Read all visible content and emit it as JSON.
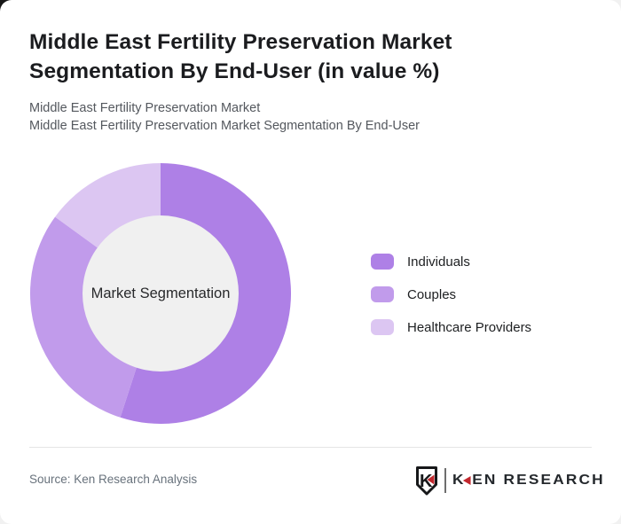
{
  "header": {
    "title": "Middle East Fertility Preservation Market Segmentation By End-User (in value %)",
    "subtitle_line1": "Middle East Fertility Preservation Market",
    "subtitle_line2": "Middle East Fertility Preservation Market Segmentation By End-User"
  },
  "chart_data": {
    "type": "pie",
    "variant": "donut",
    "title": "Middle East Fertility Preservation Market Segmentation By End-User (in value %)",
    "categories": [
      "Individuals",
      "Couples",
      "Healthcare Providers"
    ],
    "values": [
      55,
      30,
      15
    ],
    "unit": "value %",
    "colors": [
      "#ae80e6",
      "#c19beb",
      "#dcc6f2"
    ],
    "center_label": "Market Segmentation",
    "center_color": "#f0f0f0",
    "start_angle_deg": 0,
    "direction": "clockwise",
    "legend_position": "right"
  },
  "legend": {
    "items": [
      {
        "label": "Individuals",
        "color": "#ae80e6"
      },
      {
        "label": "Couples",
        "color": "#c19beb"
      },
      {
        "label": "Healthcare Providers",
        "color": "#dcc6f2"
      }
    ]
  },
  "footer": {
    "source": "Source: Ken Research Analysis",
    "logo": {
      "text": "KEN RESEARCH",
      "mark_letter": "K",
      "wordmark_k": "K",
      "wordmark_rest": "EN RESEARCH",
      "accent_color": "#c1272d",
      "text_color": "#24282c"
    }
  }
}
